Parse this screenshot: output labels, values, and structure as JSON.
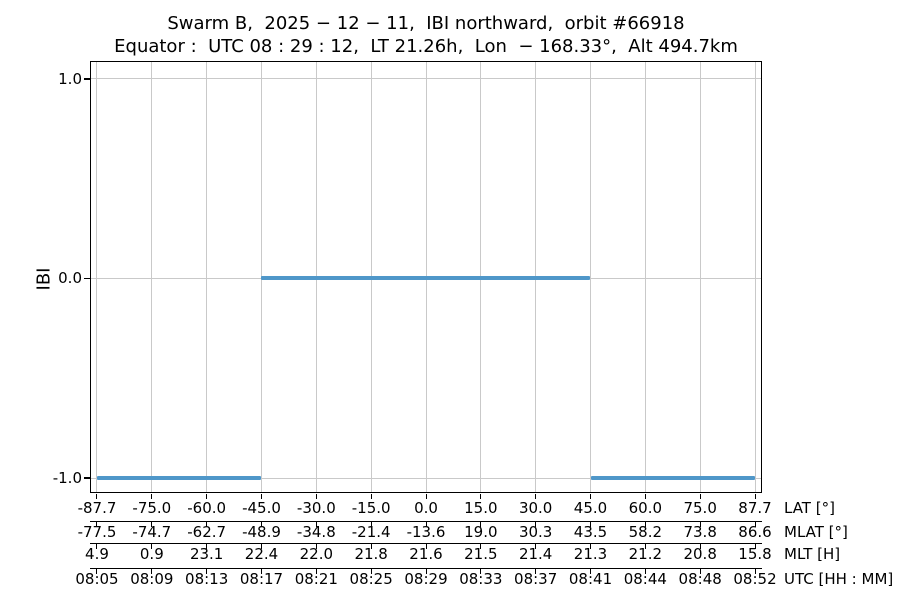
{
  "colors": {
    "line": "#4f97c9",
    "grid": "#c9c9c9",
    "axis": "#000000",
    "background": "#ffffff"
  },
  "chart_data": {
    "type": "line",
    "title": "Swarm B,  2025 − 12 − 11,  IBI northward,  orbit #66918",
    "subtitle": "Equator :  UTC 08 : 29 : 12,  LT 21.26h,  Lon  − 168.33°,  Alt 494.7km",
    "ylabel": "IBI",
    "ylim": [
      -1.075,
      1.09
    ],
    "grid": true,
    "line_color": "#4f97c9",
    "yticks": [
      {
        "value": 1.0,
        "label": "1.0"
      },
      {
        "value": 0.0,
        "label": "0.0"
      },
      {
        "value": -1.0,
        "label": "-1.0"
      }
    ],
    "segments": [
      {
        "value": -1.0,
        "from_tick_index": 0,
        "to_tick_index": 3,
        "lat_range": [
          "-87.7",
          "-45.0"
        ],
        "utc_range": [
          "08:05",
          "08:17"
        ]
      },
      {
        "value": 0.0,
        "from_tick_index": 3,
        "to_tick_index": 9,
        "lat_range": [
          "-45.0",
          "45.0"
        ],
        "utc_range": [
          "08:17",
          "08:41"
        ]
      },
      {
        "value": -1.0,
        "from_tick_index": 9,
        "to_tick_index": 12,
        "lat_range": [
          "45.0",
          "87.7"
        ],
        "utc_range": [
          "08:41",
          "08:52"
        ]
      }
    ],
    "x_axes": [
      {
        "label": "LAT [°]",
        "ticks": [
          "-87.7",
          "-75.0",
          "-60.0",
          "-45.0",
          "-30.0",
          "-15.0",
          "0.0",
          "15.0",
          "30.0",
          "45.0",
          "60.0",
          "75.0",
          "87.7"
        ]
      },
      {
        "label": "MLAT [°]",
        "ticks": [
          "-77.5",
          "-74.7",
          "-62.7",
          "-48.9",
          "-34.8",
          "-21.4",
          "-13.6",
          "19.0",
          "30.3",
          "43.5",
          "58.2",
          "73.8",
          "86.6"
        ]
      },
      {
        "label": "MLT [H]",
        "ticks": [
          "4.9",
          "0.9",
          "23.1",
          "22.4",
          "22.0",
          "21.8",
          "21.6",
          "21.5",
          "21.4",
          "21.3",
          "21.2",
          "20.8",
          "15.8"
        ]
      },
      {
        "label": "UTC [HH : MM]",
        "ticks": [
          "08:05",
          "08:09",
          "08:13",
          "08:17",
          "08:21",
          "08:25",
          "08:29",
          "08:33",
          "08:37",
          "08:41",
          "08:44",
          "08:48",
          "08:52"
        ]
      }
    ]
  }
}
